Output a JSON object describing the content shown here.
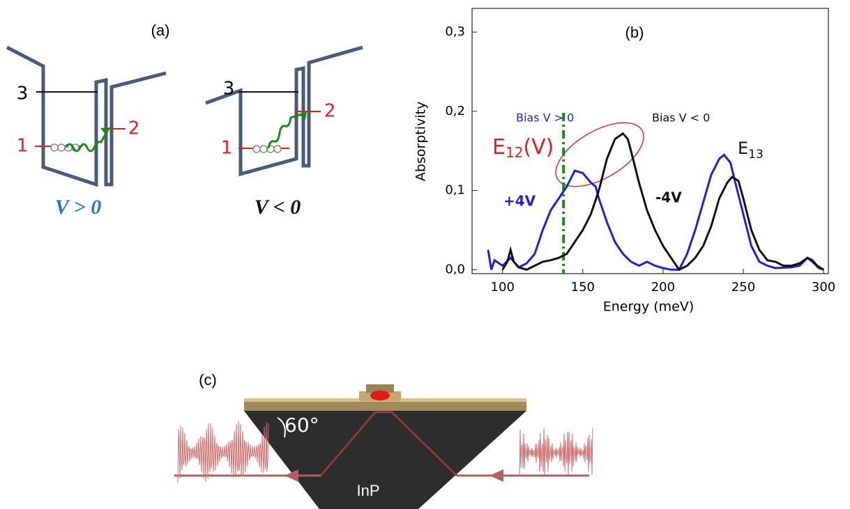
{
  "panel_a": {
    "label": "(a)",
    "left_well": {
      "levels": [
        "3",
        "2",
        "1"
      ],
      "caption": "V > 0"
    },
    "right_well": {
      "levels": [
        "3",
        "2",
        "1"
      ],
      "caption": "V < 0"
    }
  },
  "chart_data": {
    "type": "line",
    "title": "(b)",
    "x_label": "Energy (meV)",
    "y_label": "Absorptivity",
    "xlim": [
      81,
      303
    ],
    "ylim": [
      -0.005,
      0.33
    ],
    "xticks": [
      100,
      150,
      200,
      250,
      300
    ],
    "yticks": [
      {
        "value": 0,
        "label": "0,0"
      },
      {
        "value": 0.1,
        "label": "0,1"
      },
      {
        "value": 0.2,
        "label": "0,2"
      },
      {
        "value": 0.3,
        "label": "0,3"
      }
    ],
    "series": [
      {
        "name": "+4V",
        "color": "#1f1fe0",
        "x": [
          91,
          93,
          95,
          100,
          105,
          110,
          115,
          120,
          125,
          130,
          135,
          140,
          145,
          150,
          155,
          158,
          160,
          165,
          170,
          175,
          180,
          185,
          190,
          195,
          200,
          205,
          210,
          215,
          220,
          225,
          230,
          235,
          238,
          242,
          245,
          250,
          255,
          260,
          265,
          270,
          280,
          285,
          290,
          293,
          297,
          300
        ],
        "values": [
          0.025,
          0.0,
          0.012,
          0.005,
          0.015,
          0.003,
          0.008,
          0.02,
          0.05,
          0.075,
          0.09,
          0.105,
          0.125,
          0.122,
          0.11,
          0.105,
          0.09,
          0.06,
          0.035,
          0.02,
          0.01,
          0.005,
          0.01,
          0.005,
          0.002,
          0.0,
          0.0,
          0.02,
          0.05,
          0.085,
          0.12,
          0.14,
          0.145,
          0.135,
          0.11,
          0.07,
          0.03,
          0.01,
          0.005,
          0.002,
          0.003,
          0.005,
          0.015,
          0.01,
          0.002,
          0.0
        ]
      },
      {
        "name": "-4V",
        "color": "#111111",
        "x": [
          100,
          103,
          105,
          107,
          110,
          115,
          120,
          125,
          130,
          135,
          140,
          145,
          150,
          155,
          160,
          165,
          170,
          175,
          178,
          180,
          185,
          190,
          195,
          200,
          205,
          210,
          215,
          220,
          225,
          230,
          235,
          240,
          243,
          247,
          250,
          255,
          260,
          265,
          270,
          275,
          280,
          285,
          290,
          293,
          296,
          300
        ],
        "values": [
          0.0,
          0.01,
          0.025,
          0.01,
          0.003,
          0.0,
          0.005,
          0.01,
          0.012,
          0.015,
          0.02,
          0.035,
          0.05,
          0.07,
          0.1,
          0.14,
          0.165,
          0.172,
          0.165,
          0.15,
          0.11,
          0.075,
          0.05,
          0.03,
          0.015,
          0.0,
          0.005,
          0.015,
          0.03,
          0.055,
          0.09,
          0.11,
          0.117,
          0.112,
          0.09,
          0.05,
          0.025,
          0.012,
          0.01,
          0.005,
          0.005,
          0.008,
          0.015,
          0.012,
          0.005,
          0.0
        ]
      }
    ],
    "marker_x": 138,
    "annotations": {
      "bias_pos": "Bias V > 0",
      "bias_neg": "Bias V < 0",
      "e12": {
        "main": "E",
        "sub": "12",
        "tail": "(V)"
      },
      "e13": {
        "main": "E",
        "sub": "13"
      }
    }
  },
  "panel_c": {
    "label": "(c)",
    "angle": "60°",
    "material": "InP"
  }
}
